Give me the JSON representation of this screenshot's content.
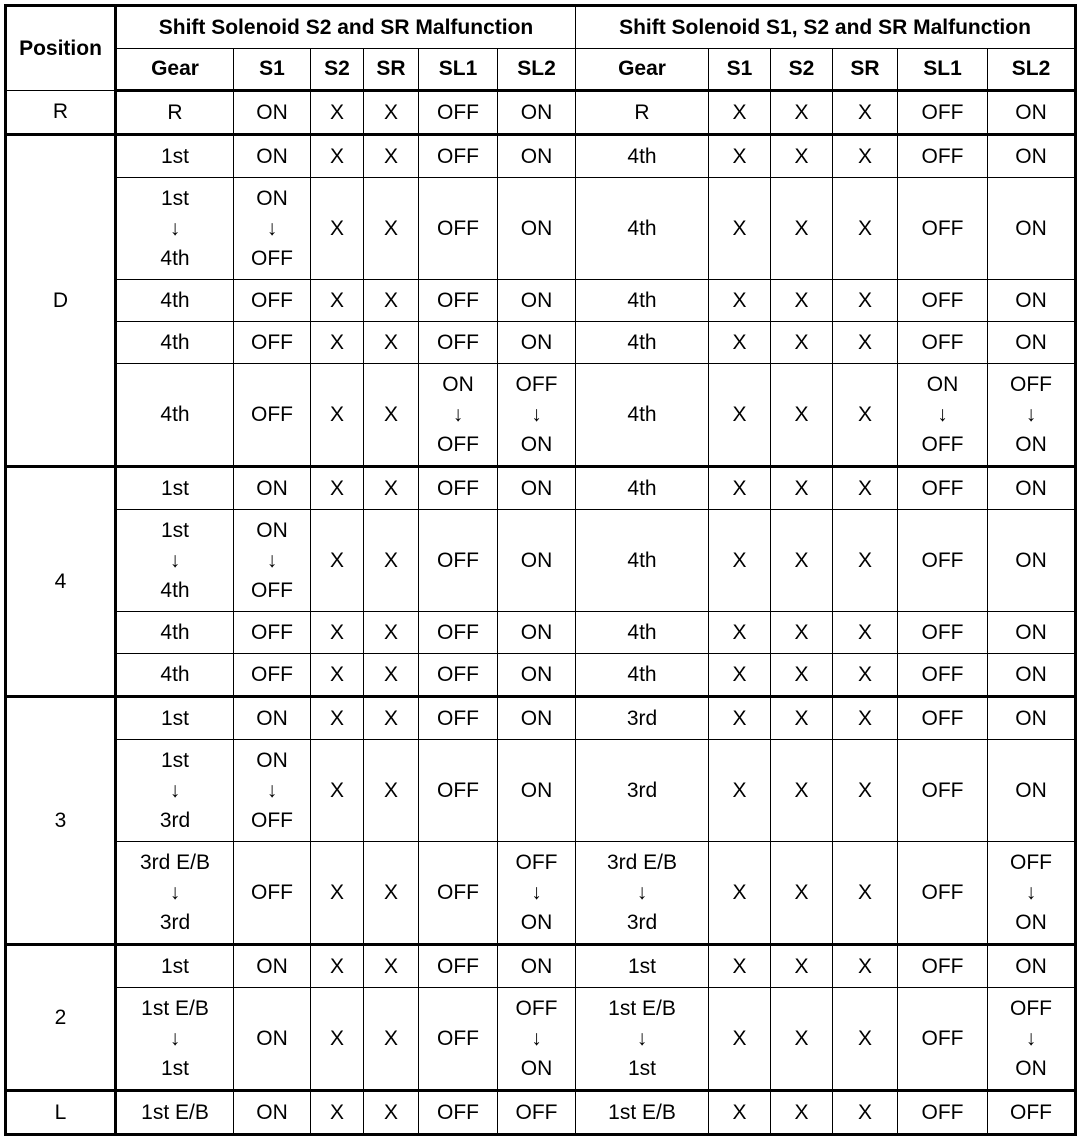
{
  "header": {
    "position": "Position",
    "group1": "Shift Solenoid S2 and SR Malfunction",
    "group2": "Shift Solenoid S1, S2 and SR Malfunction",
    "columns": [
      "Gear",
      "S1",
      "S2",
      "SR",
      "SL1",
      "SL2",
      "Gear",
      "S1",
      "S2",
      "SR",
      "SL1",
      "SL2"
    ]
  },
  "groups": [
    {
      "position": "R",
      "rows": [
        [
          "R",
          "ON",
          "X",
          "X",
          "OFF",
          "ON",
          "R",
          "X",
          "X",
          "X",
          "OFF",
          "ON"
        ]
      ]
    },
    {
      "position": "D",
      "rows": [
        [
          "1st",
          "ON",
          "X",
          "X",
          "OFF",
          "ON",
          "4th",
          "X",
          "X",
          "X",
          "OFF",
          "ON"
        ],
        [
          "1st\n↓\n4th",
          "ON\n↓\nOFF",
          "X",
          "X",
          "OFF",
          "ON",
          "4th",
          "X",
          "X",
          "X",
          "OFF",
          "ON"
        ],
        [
          "4th",
          "OFF",
          "X",
          "X",
          "OFF",
          "ON",
          "4th",
          "X",
          "X",
          "X",
          "OFF",
          "ON"
        ],
        [
          "4th",
          "OFF",
          "X",
          "X",
          "OFF",
          "ON",
          "4th",
          "X",
          "X",
          "X",
          "OFF",
          "ON"
        ],
        [
          "4th",
          "OFF",
          "X",
          "X",
          "ON\n↓\nOFF",
          "OFF\n↓\nON",
          "4th",
          "X",
          "X",
          "X",
          "ON\n↓\nOFF",
          "OFF\n↓\nON"
        ]
      ]
    },
    {
      "position": "4",
      "rows": [
        [
          "1st",
          "ON",
          "X",
          "X",
          "OFF",
          "ON",
          "4th",
          "X",
          "X",
          "X",
          "OFF",
          "ON"
        ],
        [
          "1st\n↓\n4th",
          "ON\n↓\nOFF",
          "X",
          "X",
          "OFF",
          "ON",
          "4th",
          "X",
          "X",
          "X",
          "OFF",
          "ON"
        ],
        [
          "4th",
          "OFF",
          "X",
          "X",
          "OFF",
          "ON",
          "4th",
          "X",
          "X",
          "X",
          "OFF",
          "ON"
        ],
        [
          "4th",
          "OFF",
          "X",
          "X",
          "OFF",
          "ON",
          "4th",
          "X",
          "X",
          "X",
          "OFF",
          "ON"
        ]
      ]
    },
    {
      "position": "3",
      "rows": [
        [
          "1st",
          "ON",
          "X",
          "X",
          "OFF",
          "ON",
          "3rd",
          "X",
          "X",
          "X",
          "OFF",
          "ON"
        ],
        [
          "1st\n↓\n3rd",
          "ON\n↓\nOFF",
          "X",
          "X",
          "OFF",
          "ON",
          "3rd",
          "X",
          "X",
          "X",
          "OFF",
          "ON"
        ],
        [
          "3rd E/B\n↓\n3rd",
          "OFF",
          "X",
          "X",
          "OFF",
          "OFF\n↓\nON",
          "3rd E/B\n↓\n3rd",
          "X",
          "X",
          "X",
          "OFF",
          "OFF\n↓\nON"
        ]
      ]
    },
    {
      "position": "2",
      "rows": [
        [
          "1st",
          "ON",
          "X",
          "X",
          "OFF",
          "ON",
          "1st",
          "X",
          "X",
          "X",
          "OFF",
          "ON"
        ],
        [
          "1st E/B\n↓\n1st",
          "ON",
          "X",
          "X",
          "OFF",
          "OFF\n↓\nON",
          "1st E/B\n↓\n1st",
          "X",
          "X",
          "X",
          "OFF",
          "OFF\n↓\nON"
        ]
      ]
    },
    {
      "position": "L",
      "rows": [
        [
          "1st E/B",
          "ON",
          "X",
          "X",
          "OFF",
          "OFF",
          "1st E/B",
          "X",
          "X",
          "X",
          "OFF",
          "OFF"
        ]
      ]
    }
  ]
}
